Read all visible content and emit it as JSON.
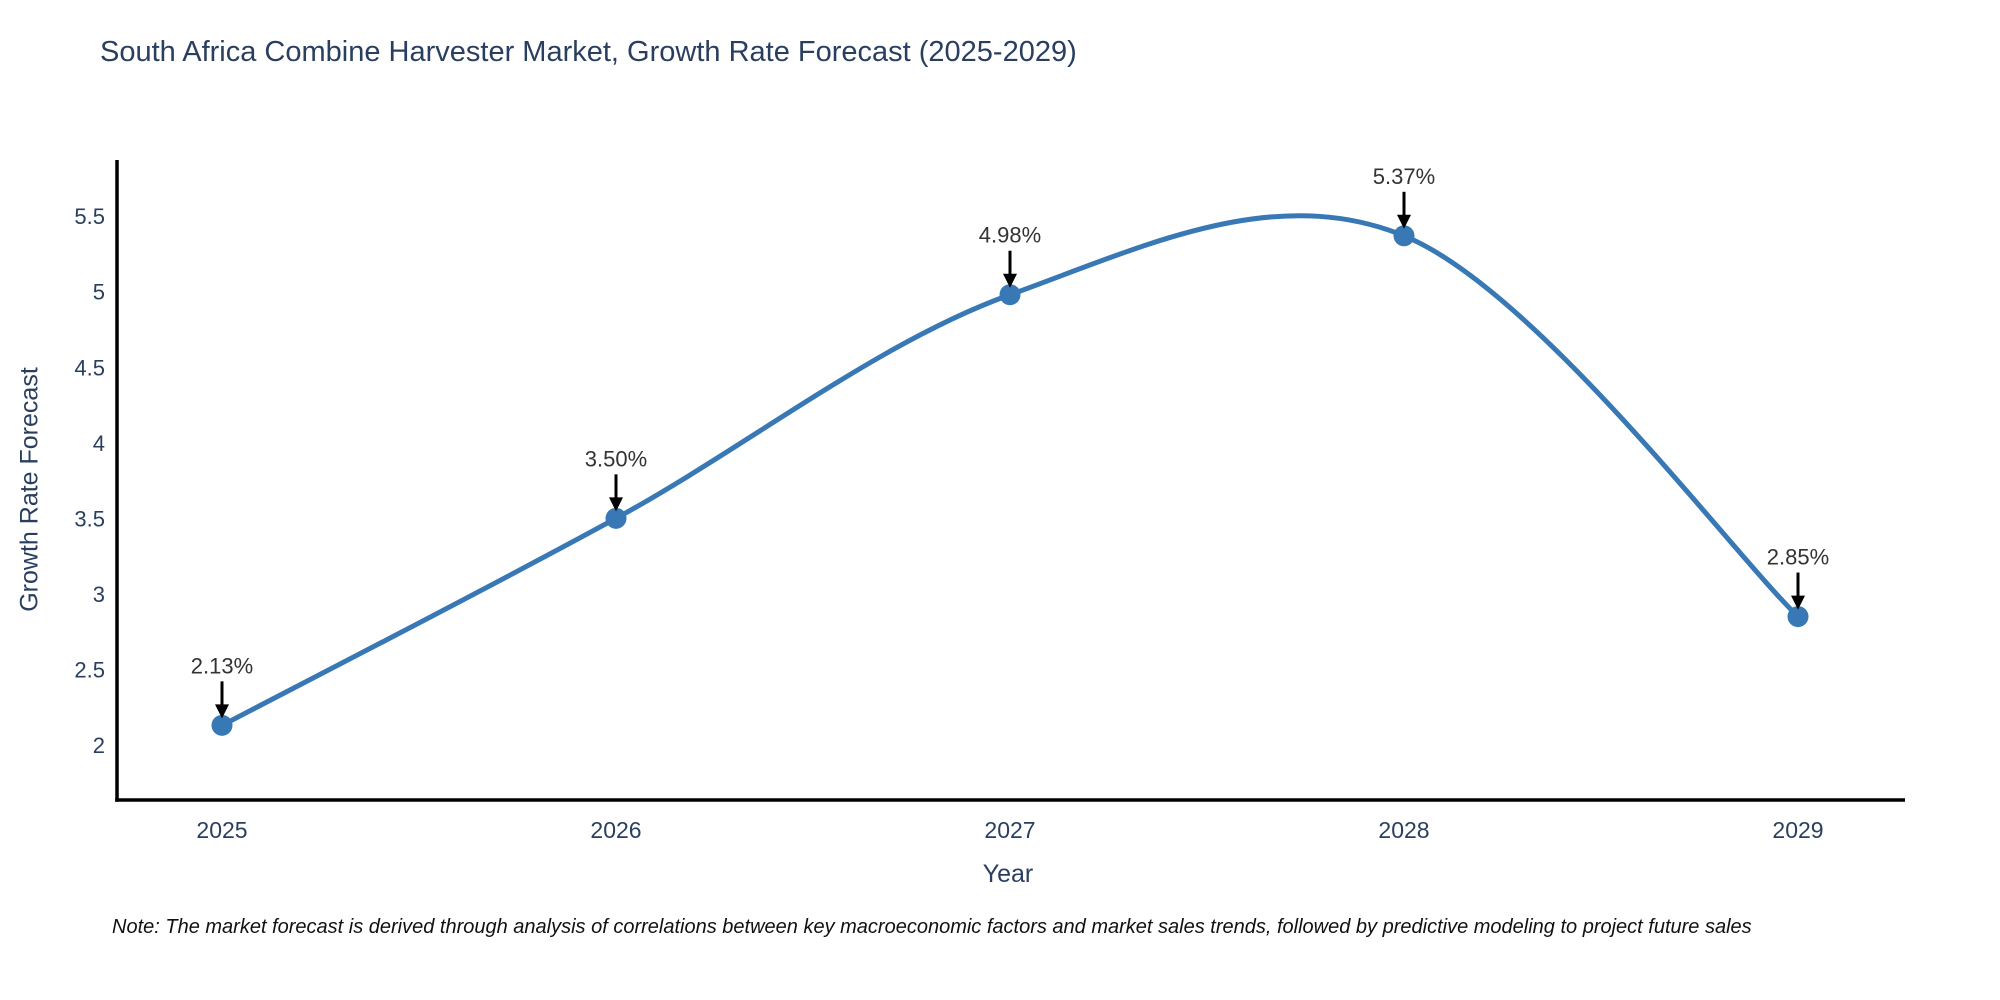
{
  "title": "South Africa Combine Harvester Market, Growth Rate Forecast (2025-2029)",
  "note": "Note: The market forecast is derived through analysis of correlations between key macroeconomic factors and market sales trends, followed by predictive modeling to project future sales",
  "chart_data": {
    "type": "line",
    "line_shape": "spline",
    "title": "South Africa Combine Harvester Market, Growth Rate Forecast (2025-2029)",
    "xlabel": "Year",
    "ylabel": "Growth Rate Forecast",
    "categories": [
      "2025",
      "2026",
      "2027",
      "2028",
      "2029"
    ],
    "values": [
      2.13,
      3.5,
      4.98,
      5.37,
      2.85
    ],
    "point_labels": [
      "2.13%",
      "3.50%",
      "4.98%",
      "5.37%",
      "2.85%"
    ],
    "y_ticks": [
      2,
      2.5,
      3,
      3.5,
      4,
      4.5,
      5,
      5.5
    ],
    "ylim": [
      1.64,
      5.88
    ],
    "grid": false,
    "legend_position": "none",
    "markers": true,
    "annotation_arrows": true,
    "colors": {
      "line": "#3878b4",
      "marker": "#3878b4",
      "axis": "#000000",
      "tick_text": "#2a3f5f",
      "annotation_text": "#333333",
      "background": "#ffffff"
    }
  }
}
